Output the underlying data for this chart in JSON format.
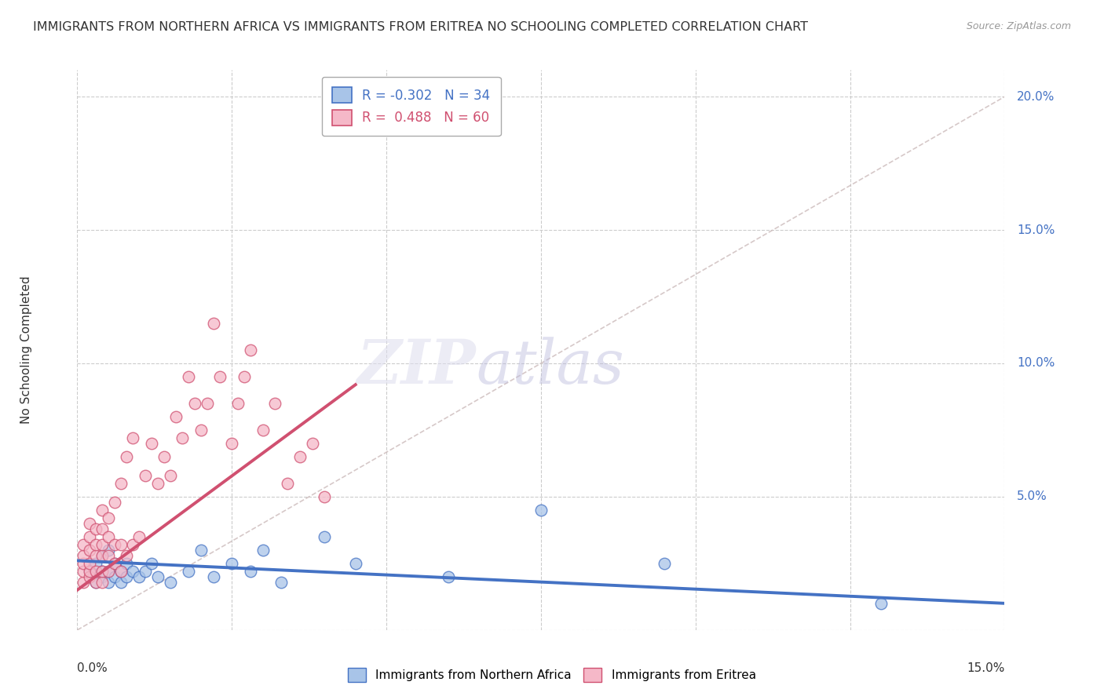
{
  "title": "IMMIGRANTS FROM NORTHERN AFRICA VS IMMIGRANTS FROM ERITREA NO SCHOOLING COMPLETED CORRELATION CHART",
  "source": "Source: ZipAtlas.com",
  "ylabel": "No Schooling Completed",
  "legend_r_blue": "-0.302",
  "legend_n_blue": "34",
  "legend_r_pink": " 0.488",
  "legend_n_pink": "60",
  "color_blue": "#a8c4e8",
  "color_pink": "#f5b8c8",
  "line_blue": "#4472c4",
  "line_pink": "#d05070",
  "xmin": 0.0,
  "xmax": 0.15,
  "ymin": 0.0,
  "ymax": 0.21,
  "blue_scatter_x": [
    0.002,
    0.003,
    0.003,
    0.004,
    0.004,
    0.004,
    0.005,
    0.005,
    0.005,
    0.006,
    0.006,
    0.007,
    0.007,
    0.008,
    0.008,
    0.009,
    0.01,
    0.011,
    0.012,
    0.013,
    0.015,
    0.018,
    0.02,
    0.022,
    0.025,
    0.028,
    0.03,
    0.033,
    0.04,
    0.045,
    0.06,
    0.075,
    0.095,
    0.13
  ],
  "blue_scatter_y": [
    0.022,
    0.018,
    0.025,
    0.02,
    0.022,
    0.028,
    0.018,
    0.022,
    0.03,
    0.02,
    0.025,
    0.018,
    0.022,
    0.02,
    0.025,
    0.022,
    0.02,
    0.022,
    0.025,
    0.02,
    0.018,
    0.022,
    0.03,
    0.02,
    0.025,
    0.022,
    0.03,
    0.018,
    0.035,
    0.025,
    0.02,
    0.045,
    0.025,
    0.01
  ],
  "pink_scatter_x": [
    0.001,
    0.001,
    0.001,
    0.001,
    0.001,
    0.002,
    0.002,
    0.002,
    0.002,
    0.002,
    0.002,
    0.003,
    0.003,
    0.003,
    0.003,
    0.003,
    0.004,
    0.004,
    0.004,
    0.004,
    0.004,
    0.004,
    0.005,
    0.005,
    0.005,
    0.005,
    0.006,
    0.006,
    0.006,
    0.007,
    0.007,
    0.007,
    0.008,
    0.008,
    0.009,
    0.009,
    0.01,
    0.011,
    0.012,
    0.013,
    0.014,
    0.015,
    0.016,
    0.017,
    0.018,
    0.019,
    0.02,
    0.021,
    0.022,
    0.023,
    0.025,
    0.026,
    0.027,
    0.028,
    0.03,
    0.032,
    0.034,
    0.036,
    0.038,
    0.04
  ],
  "pink_scatter_y": [
    0.018,
    0.022,
    0.025,
    0.028,
    0.032,
    0.02,
    0.022,
    0.025,
    0.03,
    0.035,
    0.04,
    0.018,
    0.022,
    0.028,
    0.032,
    0.038,
    0.018,
    0.022,
    0.028,
    0.032,
    0.038,
    0.045,
    0.022,
    0.028,
    0.035,
    0.042,
    0.025,
    0.032,
    0.048,
    0.022,
    0.032,
    0.055,
    0.028,
    0.065,
    0.032,
    0.072,
    0.035,
    0.058,
    0.07,
    0.055,
    0.065,
    0.058,
    0.08,
    0.072,
    0.095,
    0.085,
    0.075,
    0.085,
    0.115,
    0.095,
    0.07,
    0.085,
    0.095,
    0.105,
    0.075,
    0.085,
    0.055,
    0.065,
    0.07,
    0.05
  ],
  "blue_line_x0": 0.0,
  "blue_line_x1": 0.15,
  "blue_line_y0": 0.026,
  "blue_line_y1": 0.01,
  "pink_line_x0": 0.0,
  "pink_line_x1": 0.045,
  "pink_line_y0": 0.015,
  "pink_line_y1": 0.092,
  "dash_line_x0": 0.0,
  "dash_line_x1": 0.15,
  "dash_line_y0": 0.0,
  "dash_line_y1": 0.2
}
